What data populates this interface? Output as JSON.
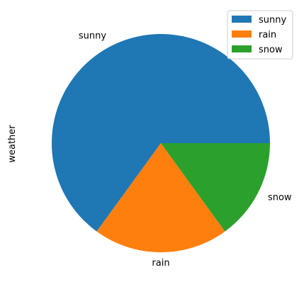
{
  "chart_data": {
    "type": "pie",
    "categories": [
      "sunny",
      "rain",
      "snow"
    ],
    "values": [
      65,
      20,
      15
    ],
    "colors": [
      "#1f77b4",
      "#ff7f0e",
      "#2ca02c"
    ],
    "ylabel": "weather",
    "title": "",
    "legend": {
      "position": "top-right",
      "entries": [
        "sunny",
        "rain",
        "snow"
      ]
    },
    "start_angle": "0 degrees (3 o'clock), counterclockwise"
  }
}
